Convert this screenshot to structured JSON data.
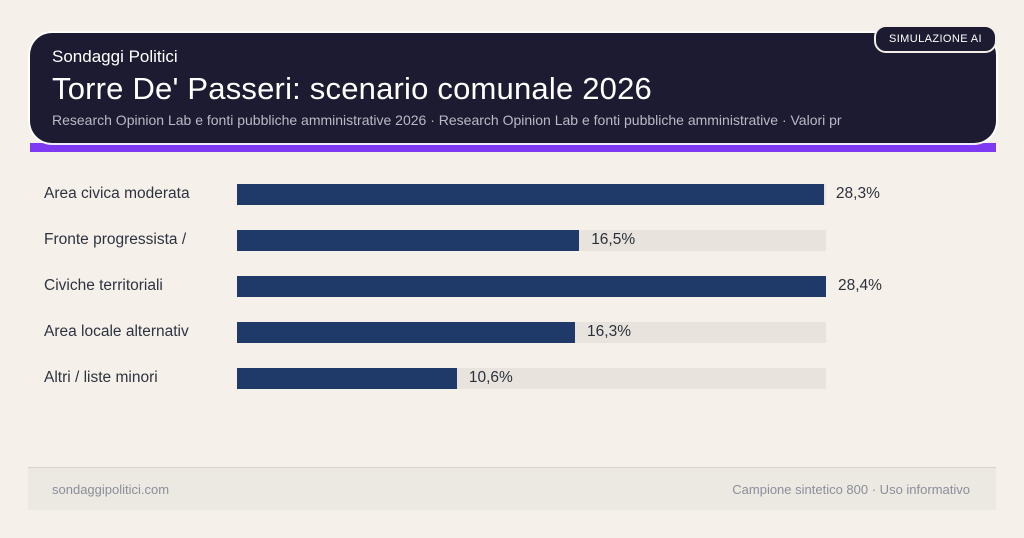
{
  "badge": {
    "label": "SIMULAZIONE AI"
  },
  "header": {
    "kicker": "Sondaggi Politici",
    "title": "Torre De' Passeri: scenario comunale 2026",
    "subtitle": "Research Opinion Lab e fonti pubbliche amministrative 2026 · Research Opinion Lab e fonti pubbliche amministrative · Valori pr"
  },
  "chart_data": {
    "type": "bar",
    "orientation": "horizontal",
    "title": "Torre De' Passeri: scenario comunale 2026",
    "categories": [
      "Area civica moderata",
      "Fronte progressista /",
      "Civiche territoriali",
      "Area locale alternativ",
      "Altri / liste minori"
    ],
    "values": [
      28.3,
      16.5,
      28.4,
      16.3,
      10.6
    ],
    "value_labels": [
      "28,3%",
      "16,5%",
      "28,4%",
      "16,3%",
      "10,6%"
    ],
    "xlim": [
      0,
      28.4
    ],
    "grid": false,
    "legend": false,
    "colors": {
      "bar": "#1f3a68",
      "track": "#e8e4dd",
      "accent": "#7e3af2",
      "header_bg": "#1d1b31",
      "page_bg": "#f5f0e9"
    }
  },
  "footer": {
    "left": "sondaggipolitici.com",
    "right": "Campione sintetico 800 · Uso informativo"
  }
}
